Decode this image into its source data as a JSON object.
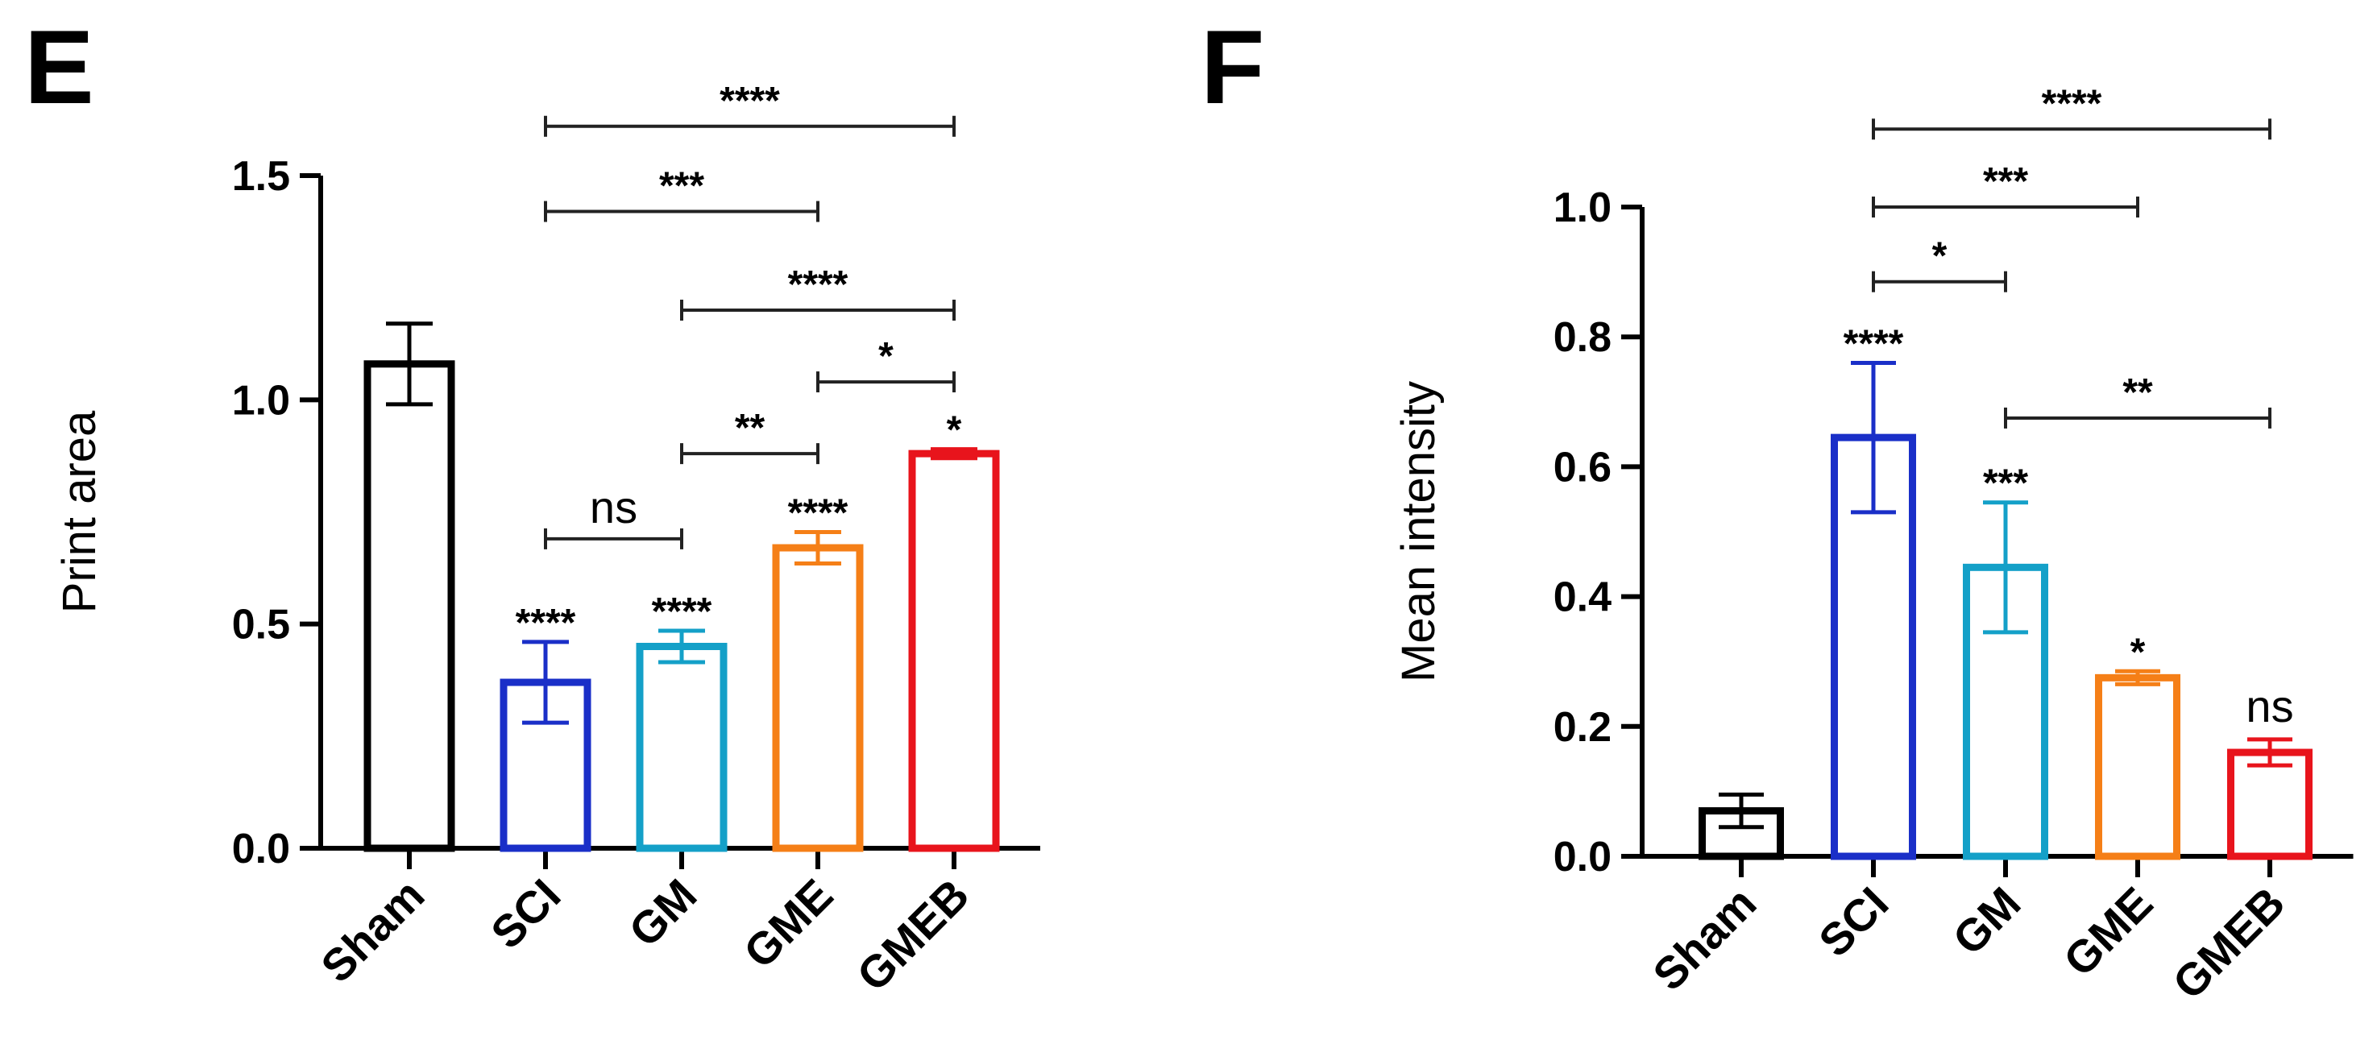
{
  "chart_data": [
    {
      "type": "bar",
      "panel": "E",
      "title": "",
      "xlabel": "",
      "ylabel": "Print area",
      "ylim": [
        0,
        1.5
      ],
      "yticks": [
        0.0,
        0.5,
        1.0,
        1.5
      ],
      "ytick_labels": [
        "0.0",
        "0.5",
        "1.0",
        "1.5"
      ],
      "categories": [
        "Sham",
        "SCI",
        "GM",
        "GME",
        "GMEB"
      ],
      "values": [
        1.08,
        0.37,
        0.45,
        0.67,
        0.88
      ],
      "errors": [
        0.09,
        0.09,
        0.035,
        0.035,
        0.01
      ],
      "colors": [
        "#000000",
        "#1a2fc8",
        "#14a0c8",
        "#f57f17",
        "#e8141c"
      ],
      "bar_labels": [
        "",
        "****",
        "****",
        "****",
        "*"
      ],
      "comparisons": [
        {
          "from": 1,
          "to": 4,
          "y": 1.61,
          "label": "****"
        },
        {
          "from": 1,
          "to": 3,
          "y": 1.42,
          "label": "***"
        },
        {
          "from": 2,
          "to": 4,
          "y": 1.2,
          "label": "****"
        },
        {
          "from": 3,
          "to": 4,
          "y": 1.04,
          "label": "*"
        },
        {
          "from": 2,
          "to": 3,
          "y": 0.88,
          "label": "**"
        },
        {
          "from": 1,
          "to": 2,
          "y": 0.69,
          "label": "ns"
        }
      ]
    },
    {
      "type": "bar",
      "panel": "F",
      "title": "",
      "xlabel": "",
      "ylabel": "Mean intensity",
      "ylim": [
        0,
        1.0
      ],
      "yticks": [
        0.0,
        0.2,
        0.4,
        0.6,
        0.8,
        1.0
      ],
      "ytick_labels": [
        "0.0",
        "0.2",
        "0.4",
        "0.6",
        "0.8",
        "1.0"
      ],
      "categories": [
        "Sham",
        "SCI",
        "GM",
        "GME",
        "GMEB"
      ],
      "values": [
        0.07,
        0.645,
        0.445,
        0.275,
        0.16
      ],
      "errors": [
        0.025,
        0.115,
        0.1,
        0.01,
        0.02
      ],
      "colors": [
        "#000000",
        "#1a2fc8",
        "#14a0c8",
        "#f57f17",
        "#e8141c"
      ],
      "bar_labels": [
        "",
        "****",
        "***",
        "*",
        "ns"
      ],
      "comparisons": [
        {
          "from": 1,
          "to": 4,
          "y": 1.12,
          "label": "****"
        },
        {
          "from": 1,
          "to": 3,
          "y": 1.0,
          "label": "***"
        },
        {
          "from": 1,
          "to": 2,
          "y": 0.885,
          "label": "*"
        },
        {
          "from": 2,
          "to": 4,
          "y": 0.675,
          "label": "**"
        }
      ]
    }
  ]
}
